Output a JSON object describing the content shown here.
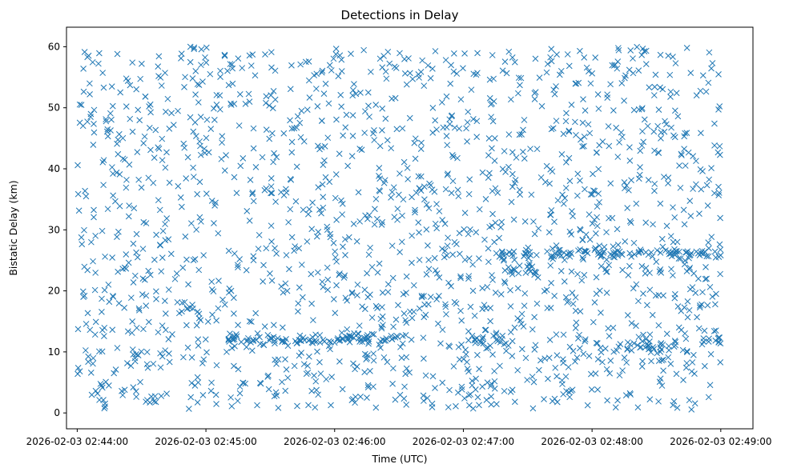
{
  "chart_data": {
    "type": "scatter",
    "title": "Detections in Delay",
    "xlabel": "Time (UTC)",
    "ylabel": "Bistatic Delay (km)",
    "marker": "x",
    "color": "#1f77b4",
    "xlim": [
      "2026-02-03 02:43:55",
      "2026-02-03 02:49:15"
    ],
    "ylim": [
      -2.6,
      63.2
    ],
    "grid": false,
    "x_ticks": [
      "2026-02-03 02:44:00",
      "2026-02-03 02:45:00",
      "2026-02-03 02:46:00",
      "2026-02-03 02:47:00",
      "2026-02-03 02:48:00",
      "2026-02-03 02:49:00"
    ],
    "y_ticks": [
      0,
      10,
      20,
      30,
      40,
      50,
      60
    ],
    "approx_point_count": 2000,
    "x_range": [
      "2026-02-03 02:44:00",
      "2026-02-03 02:49:00"
    ],
    "y_range": [
      0.5,
      60
    ],
    "clusters": [
      {
        "x_start": "2026-02-03 02:45:10",
        "x_end": "2026-02-03 02:46:30",
        "y": 12
      },
      {
        "x_start": "2026-02-03 02:47:05",
        "x_end": "2026-02-03 02:47:20",
        "y": 11.8
      },
      {
        "x_start": "2026-02-03 02:48:10",
        "x_end": "2026-02-03 02:48:40",
        "y": 11
      },
      {
        "x_start": "2026-02-03 02:48:50",
        "x_end": "2026-02-03 02:49:00",
        "y": 11.8
      },
      {
        "x_start": "2026-02-03 02:47:15",
        "x_end": "2026-02-03 02:49:00",
        "y": 26
      },
      {
        "x_start": "2026-02-03 02:47:20",
        "x_end": "2026-02-03 02:47:35",
        "y": 23.5
      }
    ]
  }
}
